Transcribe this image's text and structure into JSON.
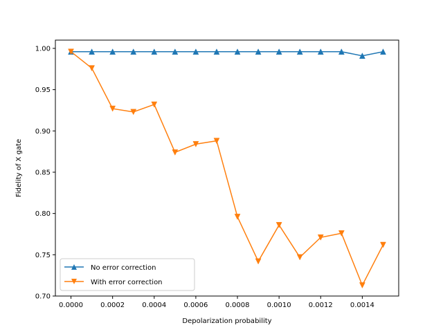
{
  "chart_data": {
    "type": "line",
    "title": "",
    "xlabel": "Depolarization probability",
    "ylabel": "Fidelity of X gate",
    "xlim": [
      -7.5e-05,
      0.001575
    ],
    "ylim": [
      0.7,
      1.01
    ],
    "x": [
      0.0,
      0.0001,
      0.0002,
      0.0003,
      0.0004,
      0.0005,
      0.0006,
      0.0007,
      0.0008,
      0.0009,
      0.001,
      0.0011,
      0.0012,
      0.0013,
      0.0014,
      0.0015
    ],
    "x_ticks": [
      0.0,
      0.0002,
      0.0004,
      0.0006,
      0.0008,
      0.001,
      0.0012,
      0.0014
    ],
    "x_tick_labels": [
      "0.0000",
      "0.0002",
      "0.0004",
      "0.0006",
      "0.0008",
      "0.0010",
      "0.0012",
      "0.0014"
    ],
    "y_ticks": [
      0.7,
      0.75,
      0.8,
      0.85,
      0.9,
      0.95,
      1.0
    ],
    "y_tick_labels": [
      "0.70",
      "0.75",
      "0.80",
      "0.85",
      "0.90",
      "0.95",
      "1.00"
    ],
    "grid": false,
    "legend_position": "lower-left",
    "series": [
      {
        "name": "No error correction",
        "color": "#1f77b4",
        "marker": "triangle-up",
        "values": [
          0.996,
          0.996,
          0.996,
          0.996,
          0.996,
          0.996,
          0.996,
          0.996,
          0.996,
          0.996,
          0.996,
          0.996,
          0.996,
          0.996,
          0.991,
          0.996
        ]
      },
      {
        "name": "With error correction",
        "color": "#ff7f0e",
        "marker": "triangle-down",
        "values": [
          0.996,
          0.976,
          0.927,
          0.923,
          0.932,
          0.874,
          0.884,
          0.888,
          0.796,
          0.742,
          0.786,
          0.747,
          0.771,
          0.776,
          0.713,
          0.762
        ]
      }
    ]
  }
}
